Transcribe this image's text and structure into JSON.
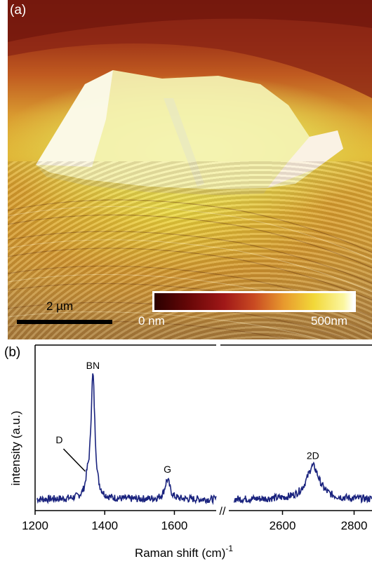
{
  "panel_a": {
    "label": "(a)",
    "scale_bar_label": "2 µm",
    "colorbar": {
      "min_label": "0 nm",
      "max_label": "500nm"
    },
    "colors": {
      "low": "#2a0000",
      "mid": "#c94a22",
      "high": "#f2d838",
      "top": "#ffffff"
    }
  },
  "panel_b": {
    "label": "(b)",
    "chart_data": {
      "type": "line",
      "title": "",
      "xlabel": "Raman shift (cm)",
      "xlabel_superscript": "-1",
      "ylabel": "intensity (a.u.)",
      "xlim_left": [
        1200,
        1720
      ],
      "xlim_right": [
        2450,
        2850
      ],
      "xticks_left": [
        1200,
        1400,
        1600
      ],
      "xticks_right": [
        2600,
        2800
      ],
      "axis_break": "//",
      "line_color": "#1a237e",
      "peaks": [
        {
          "label": "BN",
          "x": 1366,
          "height": 1.0
        },
        {
          "label": "D",
          "x": 1350,
          "height": 0.1
        },
        {
          "label": "G",
          "x": 1580,
          "height": 0.16
        },
        {
          "label": "2D",
          "x": 2685,
          "height": 0.27
        }
      ],
      "baseline_noise": 0.03
    }
  }
}
